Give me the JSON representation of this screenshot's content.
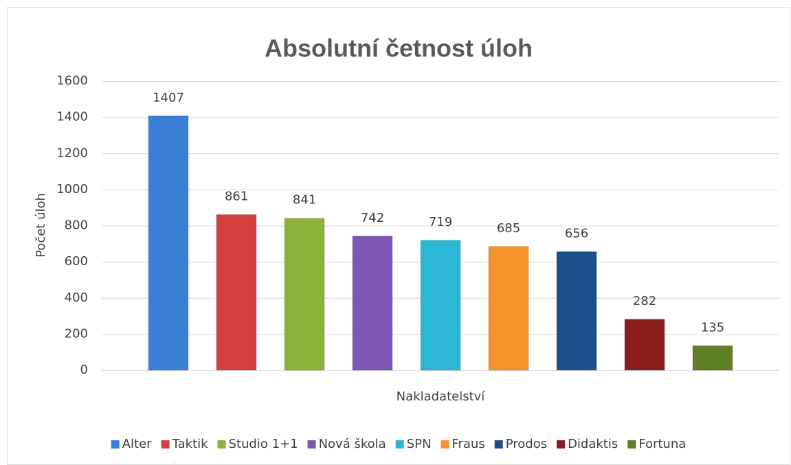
{
  "chart_data": {
    "type": "bar",
    "title": "Absolutní četnost úloh",
    "x_label": "Nakladatelství",
    "y_label": "Počet úloh",
    "categories": [
      "Alter",
      "Taktik",
      "Studio 1+1",
      "Nová škola",
      "SPN",
      "Fraus",
      "Prodos",
      "Didaktis",
      "Fortuna"
    ],
    "values": [
      1407,
      861,
      841,
      742,
      719,
      685,
      656,
      282,
      135
    ],
    "colors": [
      "#3a7fd5",
      "#d63f3f",
      "#8db23a",
      "#7e57b5",
      "#2bb6d6",
      "#f5922a",
      "#1f4e8c",
      "#8b1c1c",
      "#5f7f24"
    ],
    "ylim": [
      0,
      1600
    ],
    "yticks": [
      0,
      200,
      400,
      600,
      800,
      1000,
      1200,
      1400,
      1600
    ],
    "grid": true,
    "legend": "bottom"
  }
}
